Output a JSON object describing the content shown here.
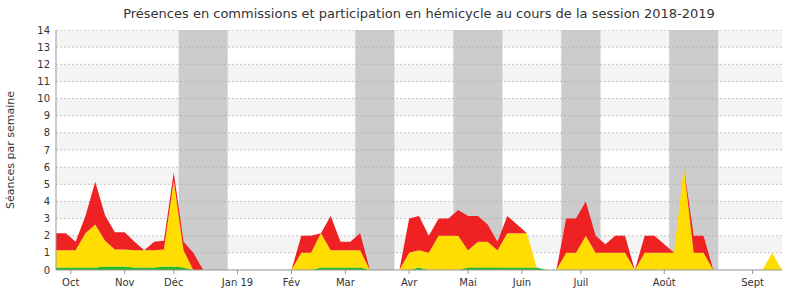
{
  "chart_data": {
    "type": "area",
    "stacked": true,
    "grid": true,
    "title": "Présences en commissions et participation en hémicycle au cours de la session 2018-2019",
    "y_label": "Séances par semaine",
    "x": [
      0,
      1,
      2,
      3,
      4,
      5,
      6,
      7,
      8,
      9,
      10,
      11,
      12,
      13,
      14,
      15,
      16,
      17,
      18,
      19,
      20,
      21,
      22,
      23,
      24,
      25,
      26,
      27,
      28,
      29,
      30,
      31,
      32,
      33,
      34,
      35,
      36,
      37,
      38,
      39,
      40,
      41,
      42,
      43,
      44,
      45,
      46,
      47,
      48,
      49,
      50,
      51,
      52,
      53,
      54,
      55,
      56,
      57,
      58,
      59,
      60,
      61,
      62,
      63,
      64,
      65,
      66,
      67,
      68,
      69,
      70,
      71,
      72,
      73,
      74
    ],
    "xlim": [
      0,
      74
    ],
    "xticks": [
      {
        "value": 1.5,
        "label": "Oct"
      },
      {
        "value": 7.0,
        "label": "Nov"
      },
      {
        "value": 12.0,
        "label": "Déc"
      },
      {
        "value": 18.5,
        "label": "Jan 19"
      },
      {
        "value": 24.0,
        "label": "Fév"
      },
      {
        "value": 29.5,
        "label": "Mar"
      },
      {
        "value": 36.0,
        "label": "Avr"
      },
      {
        "value": 42.0,
        "label": "Mai"
      },
      {
        "value": 47.5,
        "label": "Juin"
      },
      {
        "value": 53.5,
        "label": "Juil"
      },
      {
        "value": 62.0,
        "label": "Août"
      },
      {
        "value": 71.0,
        "label": "Sept"
      }
    ],
    "ylim": [
      0,
      14
    ],
    "yticks": [
      0,
      1,
      2,
      3,
      4,
      5,
      6,
      7,
      8,
      9,
      10,
      11,
      12,
      13,
      14
    ],
    "bands": {
      "color": "#cccccc",
      "ranges": [
        [
          12.5,
          17.5
        ],
        [
          30.5,
          34.5
        ],
        [
          40.5,
          45.5
        ],
        [
          51.5,
          55.5
        ],
        [
          62.5,
          67.5
        ]
      ]
    },
    "series": [
      {
        "color": "#22bb22",
        "values": [
          0.15,
          0.15,
          0.15,
          0.15,
          0.15,
          0.2,
          0.2,
          0.2,
          0.15,
          0.15,
          0.15,
          0.2,
          0.2,
          0.15,
          0.0,
          0.0,
          0.0,
          0.0,
          0.0,
          0.0,
          0.0,
          0.0,
          0.0,
          0.0,
          0.0,
          0.0,
          0.0,
          0.15,
          0.15,
          0.15,
          0.15,
          0.15,
          0.0,
          0.0,
          0.0,
          0.0,
          0.0,
          0.15,
          0.0,
          0.0,
          0.0,
          0.0,
          0.15,
          0.15,
          0.15,
          0.15,
          0.15,
          0.15,
          0.15,
          0.15,
          0.0,
          0.0,
          0.0,
          0.0,
          0.0,
          0.0,
          0.0,
          0.0,
          0.0,
          0.0,
          0.0,
          0.0,
          0.0,
          0.0,
          0.0,
          0.0,
          0.0,
          0.0,
          0.0,
          0.0,
          0.0,
          0.0,
          0.0,
          0.0,
          0.0
        ]
      },
      {
        "color": "#ffdd00",
        "values": [
          1.0,
          1.0,
          1.0,
          2.0,
          2.5,
          1.5,
          1.0,
          1.0,
          1.0,
          1.0,
          1.0,
          1.0,
          5.0,
          1.0,
          0.0,
          0.0,
          0.0,
          0.0,
          0.0,
          0.0,
          0.0,
          0.0,
          0.0,
          0.0,
          0.0,
          1.0,
          1.0,
          2.0,
          1.0,
          1.0,
          1.0,
          1.0,
          0.0,
          0.0,
          0.0,
          0.0,
          1.0,
          1.0,
          1.0,
          2.0,
          2.0,
          2.0,
          1.0,
          1.5,
          1.5,
          1.0,
          2.0,
          2.0,
          2.0,
          0.0,
          0.0,
          0.0,
          1.0,
          1.0,
          2.0,
          1.0,
          1.0,
          1.0,
          1.0,
          0.0,
          1.0,
          1.0,
          1.0,
          1.0,
          6.0,
          1.0,
          1.0,
          0.0,
          0.0,
          0.0,
          0.0,
          0.0,
          0.0,
          1.0,
          0.0
        ]
      },
      {
        "color": "#ee2222",
        "values": [
          1.0,
          1.0,
          0.5,
          1.0,
          2.5,
          1.5,
          1.0,
          1.0,
          0.5,
          0.0,
          0.5,
          0.5,
          0.5,
          0.5,
          1.0,
          0.0,
          0.0,
          0.0,
          0.0,
          0.0,
          0.0,
          0.0,
          0.0,
          0.0,
          0.0,
          1.0,
          1.0,
          0.0,
          2.0,
          0.5,
          0.5,
          1.0,
          0.0,
          0.0,
          0.0,
          0.0,
          2.0,
          2.0,
          1.0,
          1.0,
          1.0,
          1.5,
          2.0,
          1.5,
          1.0,
          0.5,
          1.0,
          0.5,
          0.0,
          0.0,
          0.0,
          0.0,
          2.0,
          2.0,
          2.0,
          1.0,
          0.5,
          1.0,
          1.0,
          0.0,
          1.0,
          1.0,
          0.5,
          0.0,
          0.0,
          1.0,
          1.0,
          0.0,
          0.0,
          0.0,
          0.0,
          0.0,
          0.0,
          0.0,
          0.0
        ]
      }
    ]
  }
}
